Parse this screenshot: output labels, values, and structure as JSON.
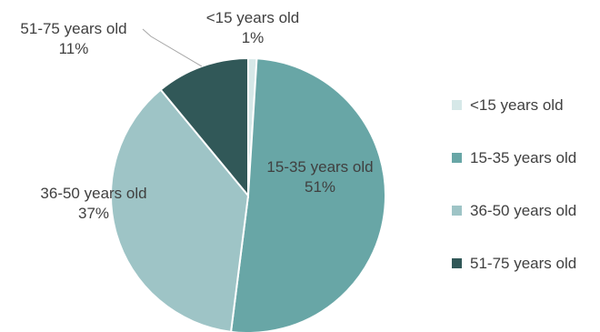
{
  "chart_data": {
    "type": "pie",
    "categories": [
      "<15 years old",
      "15-35 years old",
      "36-50 years old",
      "51-75 years old"
    ],
    "values": [
      1,
      51,
      37,
      11
    ],
    "value_labels": [
      "1%",
      "51%",
      "37%",
      "11%"
    ],
    "colors": [
      "#d6e8e8",
      "#68a6a6",
      "#9ec4c6",
      "#315858"
    ],
    "legend_position": "right",
    "data_labels": "outside-and-inside"
  }
}
